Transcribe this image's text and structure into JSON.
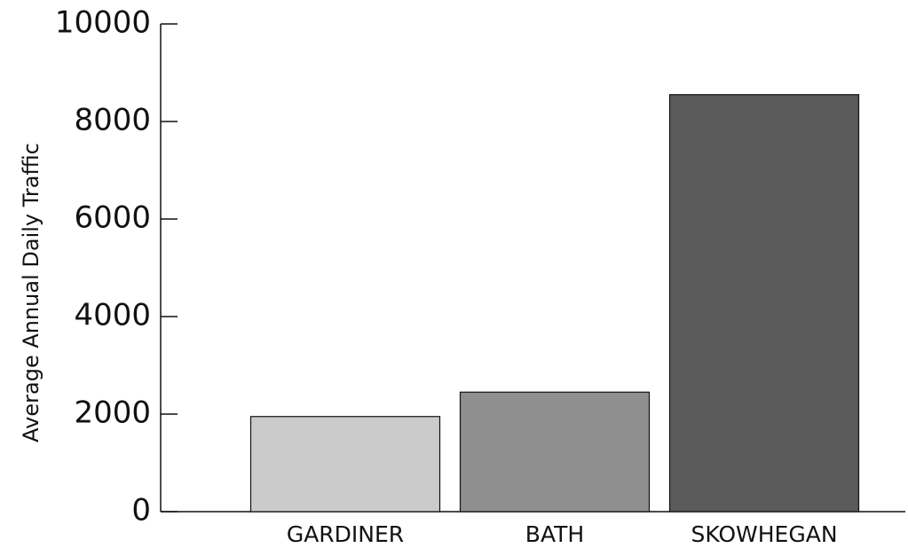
{
  "chart_data": {
    "type": "bar",
    "ylabel": "Average Annual Daily Traffic",
    "categories": [
      "GARDINER",
      "BATH",
      "SKOWHEGAN"
    ],
    "values": [
      1950,
      2450,
      8550
    ],
    "colors": [
      "#cbcbcb",
      "#8f8f8f",
      "#5a5a5a"
    ],
    "ylim": [
      0,
      10000
    ],
    "yticks": [
      0,
      2000,
      4000,
      6000,
      8000,
      10000
    ],
    "grid": false
  }
}
